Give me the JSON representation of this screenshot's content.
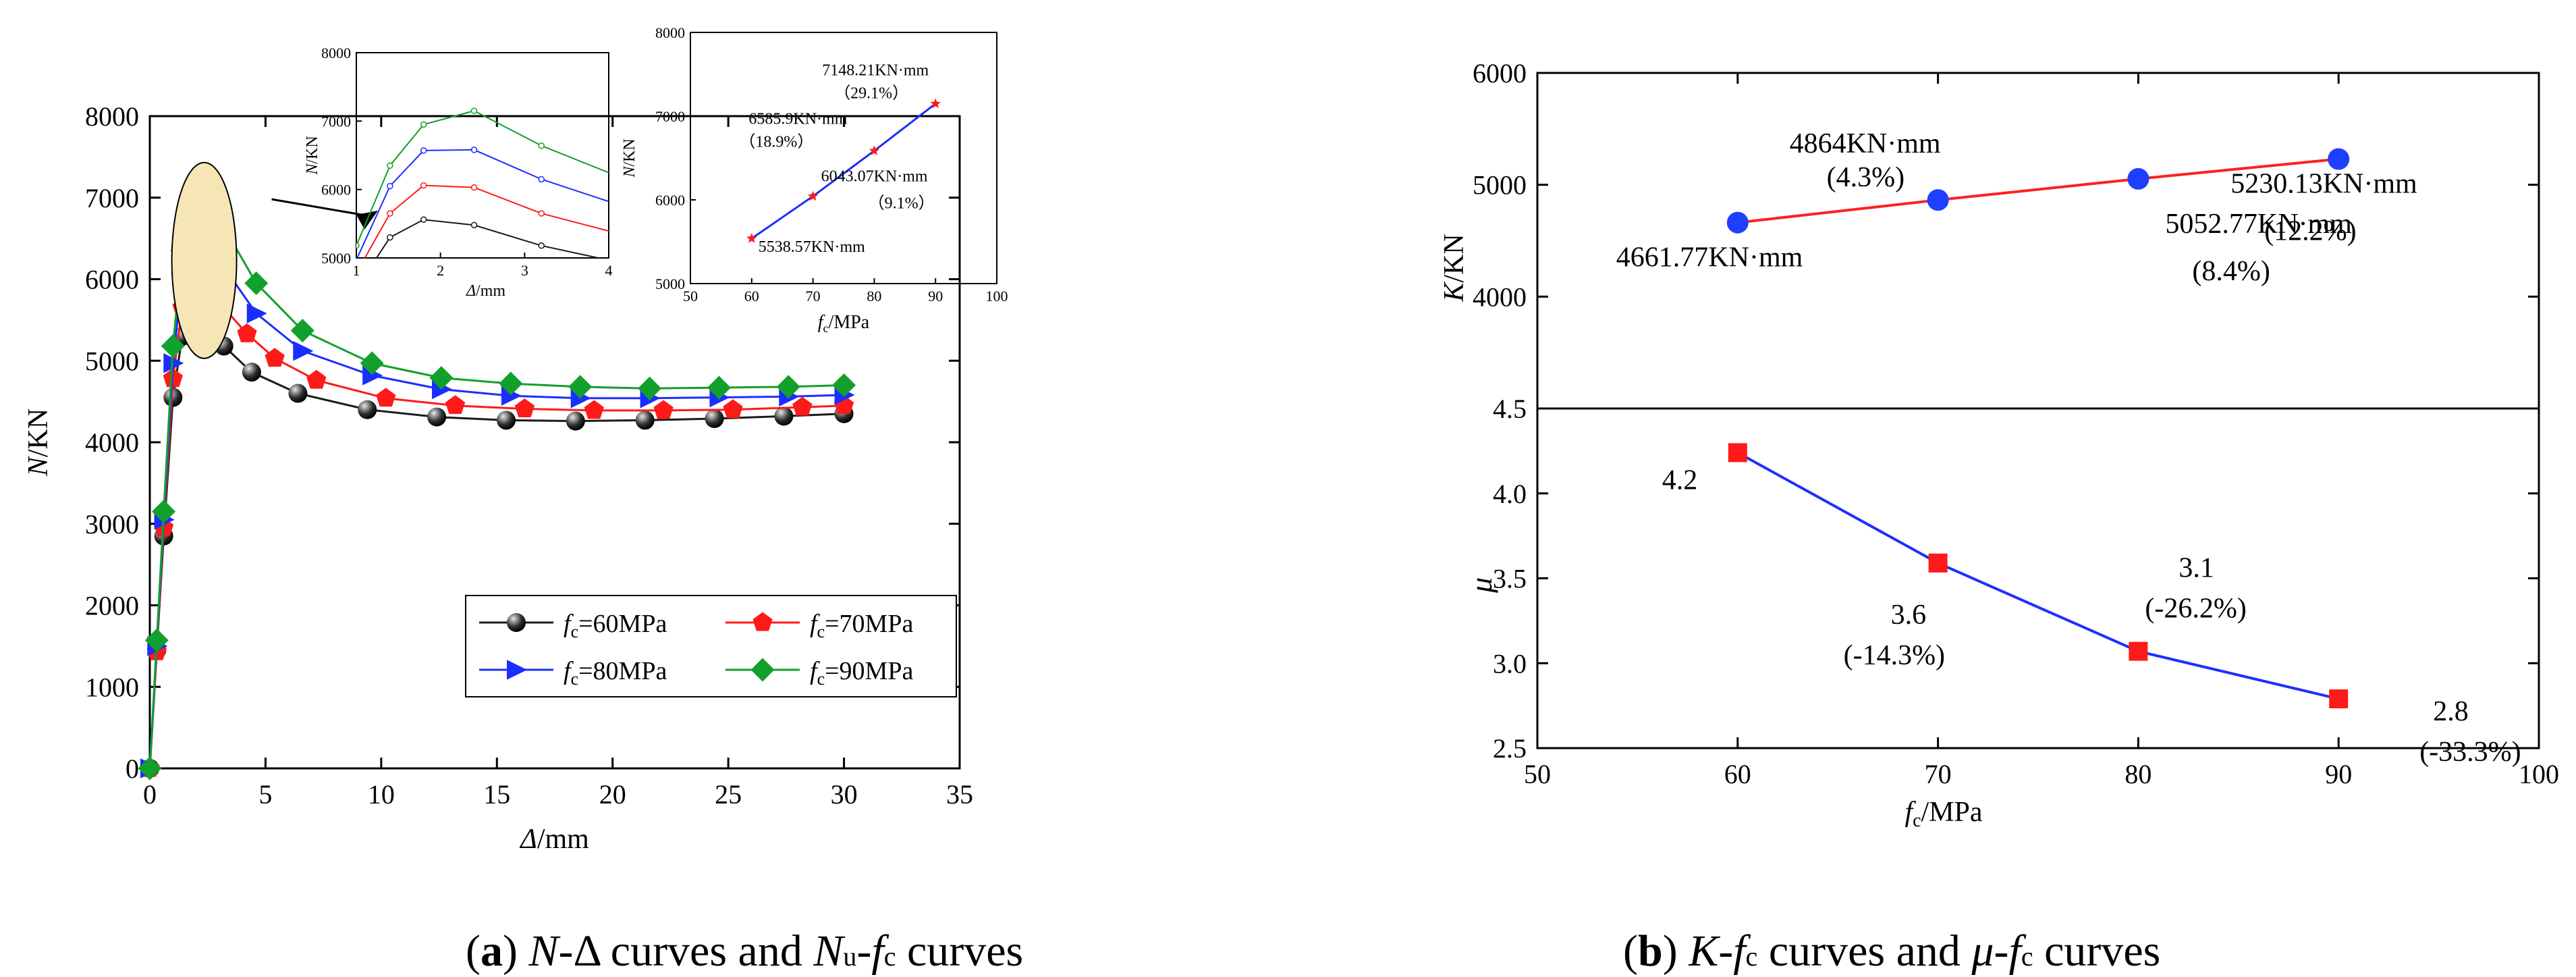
{
  "colors": {
    "fc60": "#1a1a1a",
    "fc70": "#ff1a1a",
    "fc80": "#1a2eff",
    "fc90": "#12a02c",
    "k_line": "#ff2020",
    "k_marker": "#1f3fff",
    "mu_line": "#1f2fff",
    "mu_marker": "#ff1a1a",
    "highlight": "#f7e6b5"
  },
  "chart_data": [
    {
      "id": "main",
      "type": "line",
      "xlabel": "Δ/mm",
      "ylabel": "N/KN",
      "xlim": [
        0,
        35
      ],
      "ylim": [
        0,
        8000
      ],
      "xticks": [
        0,
        5,
        10,
        15,
        20,
        25,
        30,
        35
      ],
      "yticks": [
        0,
        1000,
        2000,
        3000,
        4000,
        5000,
        6000,
        7000,
        8000
      ],
      "legend": {
        "position": "bottom-right",
        "prefix": "f",
        "sub": "c"
      },
      "series": [
        {
          "name": "=60MPa",
          "color_key": "fc60",
          "marker": "ball",
          "x": [
            0,
            0.3,
            0.6,
            1.0,
            1.4,
            1.8,
            2.4,
            3.2,
            4.4,
            6.4,
            9.4,
            12.4,
            15.4,
            18.4,
            21.4,
            24.4,
            27.4,
            30
          ],
          "y": [
            0,
            1450,
            2850,
            4550,
            5300,
            5560,
            5480,
            5180,
            4860,
            4600,
            4400,
            4310,
            4270,
            4260,
            4270,
            4290,
            4320,
            4350
          ]
        },
        {
          "name": "=70MPa",
          "color_key": "fc70",
          "marker": "pentagon",
          "x": [
            0,
            0.3,
            0.6,
            1.0,
            1.4,
            1.8,
            2.4,
            3.2,
            4.2,
            5.4,
            7.2,
            10.2,
            13.2,
            16.2,
            19.2,
            22.2,
            25.2,
            28.2,
            30
          ],
          "y": [
            0,
            1430,
            2950,
            4780,
            5650,
            6060,
            6030,
            5650,
            5330,
            5030,
            4760,
            4540,
            4450,
            4410,
            4390,
            4390,
            4400,
            4430,
            4450
          ]
        },
        {
          "name": "=80MPa",
          "color_key": "fc80",
          "marker": "triangle",
          "x": [
            0,
            0.3,
            0.6,
            1.0,
            1.4,
            1.8,
            2.4,
            3.2,
            4.6,
            6.6,
            9.6,
            12.6,
            15.6,
            18.6,
            21.6,
            24.6,
            27.6,
            30
          ],
          "y": [
            0,
            1500,
            3050,
            4970,
            6050,
            6570,
            6580,
            6150,
            5580,
            5120,
            4820,
            4650,
            4570,
            4540,
            4540,
            4550,
            4560,
            4580
          ]
        },
        {
          "name": "=90MPa",
          "color_key": "fc90",
          "marker": "diamond",
          "x": [
            0,
            0.3,
            0.6,
            1.0,
            1.4,
            1.8,
            2.4,
            3.2,
            4.6,
            6.6,
            9.6,
            12.6,
            15.6,
            18.6,
            21.6,
            24.6,
            27.6,
            30
          ],
          "y": [
            0,
            1570,
            3150,
            5180,
            6350,
            6950,
            7150,
            6640,
            5950,
            5370,
            4970,
            4790,
            4720,
            4680,
            4660,
            4670,
            4680,
            4700
          ]
        }
      ]
    },
    {
      "id": "inset_zoom",
      "type": "line",
      "xlabel": "Δ/mm",
      "ylabel": "N/KN",
      "xlim": [
        1,
        4
      ],
      "ylim": [
        5000,
        8000
      ],
      "xticks": [
        1,
        2,
        3,
        4
      ],
      "yticks": [
        5000,
        6000,
        7000,
        8000
      ]
    },
    {
      "id": "inset_peak",
      "type": "line",
      "xlabel": "/MPa",
      "xlabel_prefix": "f",
      "xlabel_sub": "c",
      "ylabel": "N/KN",
      "xlim": [
        50,
        100
      ],
      "ylim": [
        5000,
        8000
      ],
      "xticks": [
        50,
        60,
        70,
        80,
        90,
        100
      ],
      "yticks": [
        5000,
        6000,
        7000,
        8000
      ],
      "x": [
        60,
        70,
        80,
        90
      ],
      "y": [
        5538.57,
        6043.07,
        6585.9,
        7148.21
      ],
      "labels": [
        "5538.57KN·mm",
        "6043.07KN·mm",
        "6585.9KN·mm",
        "7148.21KN·mm"
      ],
      "pct": [
        "",
        "（9.1%）",
        "（18.9%）",
        "（29.1%）"
      ]
    },
    {
      "id": "K",
      "type": "line",
      "ylabel": "K/KN",
      "xlim": [
        50,
        100
      ],
      "ylim": [
        3000,
        6000
      ],
      "yticks": [
        4000,
        5000,
        6000
      ],
      "x": [
        60,
        70,
        80,
        90
      ],
      "y": [
        4661.77,
        4864,
        5052.77,
        5230.13
      ],
      "labels": [
        "4661.77KN·mm",
        "4864KN·mm",
        "5052.77KN·mm",
        "5230.13KN·mm"
      ],
      "pct": [
        "",
        "(4.3%)",
        "(8.4%)",
        "(12.2%)"
      ]
    },
    {
      "id": "mu",
      "type": "line",
      "ylabel": "μ",
      "xlabel": "/MPa",
      "xlabel_prefix": "f",
      "xlabel_sub": "c",
      "xlim": [
        50,
        100
      ],
      "ylim": [
        2.5,
        4.5
      ],
      "xticks": [
        50,
        60,
        70,
        80,
        90,
        100
      ],
      "yticks": [
        "2.5",
        "3.0",
        "3.5",
        "4.0",
        "4.5"
      ],
      "x": [
        60,
        70,
        80,
        90
      ],
      "y": [
        4.24,
        3.59,
        3.07,
        2.79
      ],
      "labels": [
        "4.2",
        "3.6",
        "3.1",
        "2.8"
      ],
      "pct": [
        "",
        "(-14.3%)",
        "(-26.2%)",
        "(-33.3%)"
      ]
    }
  ],
  "captions": {
    "a": {
      "tag": "a",
      "text": " curves and ",
      "p1": "N",
      "p2": "-Δ",
      "p3": "N",
      "p3sub": "u",
      "p4": "-",
      "p5": "f",
      "p5sub": "c",
      "tail": " curves"
    },
    "b": {
      "tag": "b",
      "p1": "K",
      "p2": "-",
      "p3": "f",
      "p3sub": "c",
      "mid": " curves and ",
      "p4": "μ",
      "p5": "-",
      "p6": "f",
      "p6sub": "c",
      "tail": " curves"
    }
  }
}
